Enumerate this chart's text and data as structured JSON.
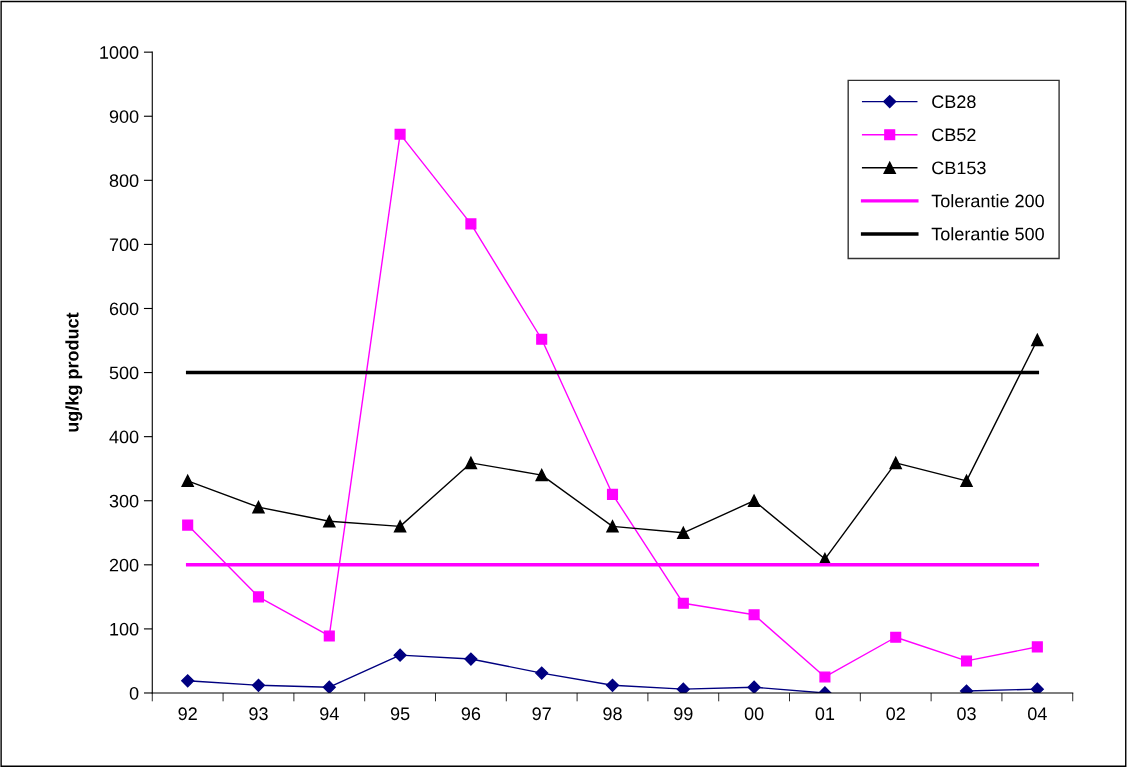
{
  "chart_data": {
    "type": "line",
    "ylabel": "ug/kg product",
    "categories": [
      "92",
      "93",
      "94",
      "95",
      "96",
      "97",
      "98",
      "99",
      "00",
      "01",
      "02",
      "03",
      "04"
    ],
    "series": [
      {
        "name": "CB28",
        "color": "#000080",
        "marker": "diamond",
        "values": [
          19,
          12,
          9,
          59,
          53,
          31,
          12,
          6,
          9,
          0,
          null,
          3,
          6
        ]
      },
      {
        "name": "CB52",
        "color": "#ff00ff",
        "marker": "square",
        "values": [
          262,
          150,
          89,
          872,
          732,
          552,
          310,
          140,
          122,
          25,
          87,
          50,
          72
        ]
      },
      {
        "name": "CB153",
        "color": "#000000",
        "marker": "triangle",
        "values": [
          331,
          290,
          268,
          260,
          359,
          340,
          260,
          250,
          300,
          209,
          359,
          331,
          551
        ]
      },
      {
        "name": "Tolerantie 200",
        "color": "#ff00ff",
        "marker": "none",
        "values": [
          200,
          200,
          200,
          200,
          200,
          200,
          200,
          200,
          200,
          200,
          200,
          200,
          200
        ]
      },
      {
        "name": "Tolerantie 500",
        "color": "#000000",
        "marker": "none",
        "values": [
          500,
          500,
          500,
          500,
          500,
          500,
          500,
          500,
          500,
          500,
          500,
          500,
          500
        ]
      }
    ],
    "ylim": [
      0,
      1000
    ],
    "yticks": [
      0,
      100,
      200,
      300,
      400,
      500,
      600,
      700,
      800,
      900,
      1000
    ],
    "grid": false,
    "legend": "top right"
  }
}
